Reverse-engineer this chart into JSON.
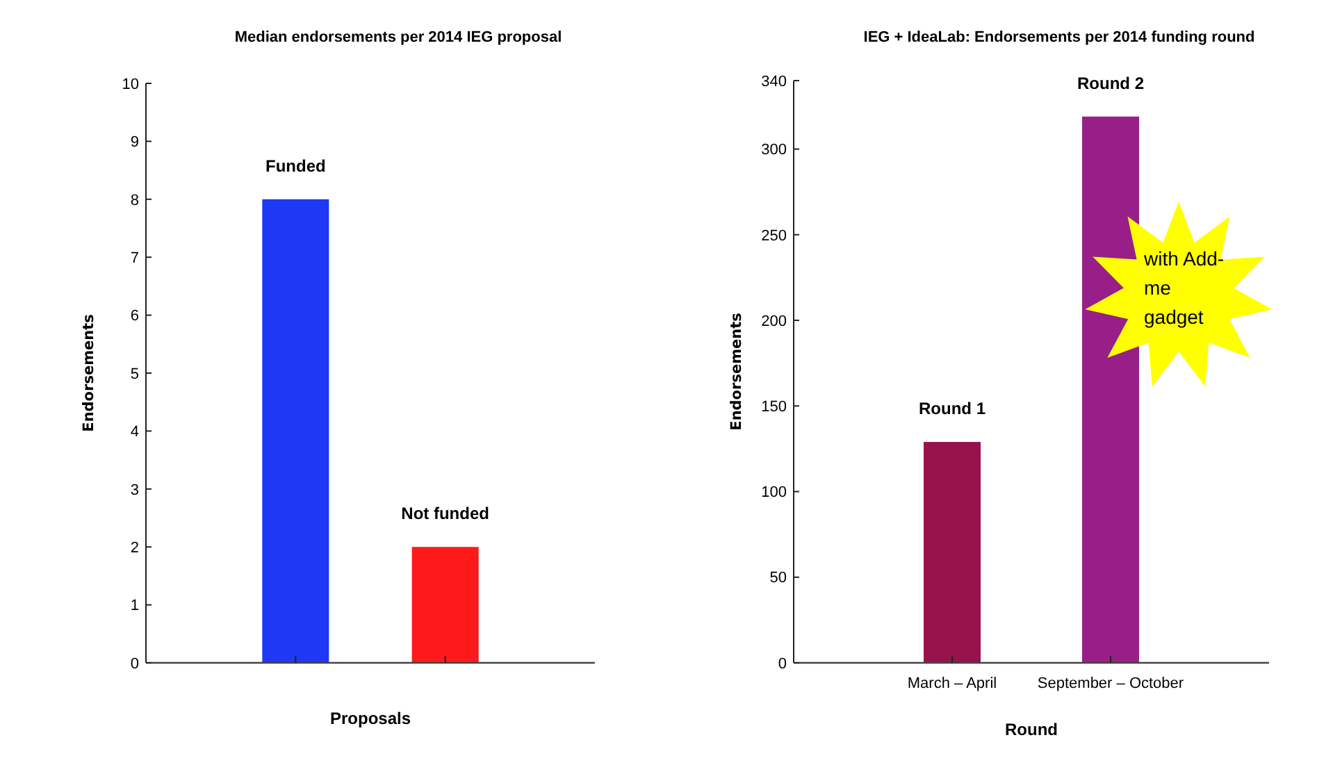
{
  "chart_data": [
    {
      "type": "bar",
      "title": "Median endorsements per 2014 IEG proposal",
      "xlabel": "Proposals",
      "ylabel": "Endorsements",
      "categories": [
        null,
        null
      ],
      "series": [
        {
          "name": "Funded",
          "color": "#1e38f5",
          "values": [
            8,
            null
          ]
        },
        {
          "name": "Not funded",
          "color": "#fe1a1a",
          "values": [
            null,
            2
          ]
        }
      ],
      "ylim": [
        0,
        10
      ],
      "yticks": [
        0,
        1,
        2,
        3,
        4,
        5,
        6,
        7,
        8,
        9,
        10
      ],
      "grid": false
    },
    {
      "type": "bar",
      "title": "IEG + IdeaLab: Endorsements per 2014 funding round",
      "xlabel": "Round",
      "ylabel": "Endorsements",
      "categories": [
        "March – April",
        "September – October"
      ],
      "series": [
        {
          "name": "Round 1",
          "color": "#98134c",
          "values": [
            129,
            null
          ]
        },
        {
          "name": "Round 2",
          "color": "#981f88",
          "values": [
            null,
            319
          ]
        }
      ],
      "ylim": [
        0,
        340
      ],
      "yticks": [
        0,
        50,
        100,
        150,
        200,
        250,
        300,
        340
      ],
      "grid": false,
      "annotations": [
        "with Add-me gadget"
      ]
    }
  ]
}
